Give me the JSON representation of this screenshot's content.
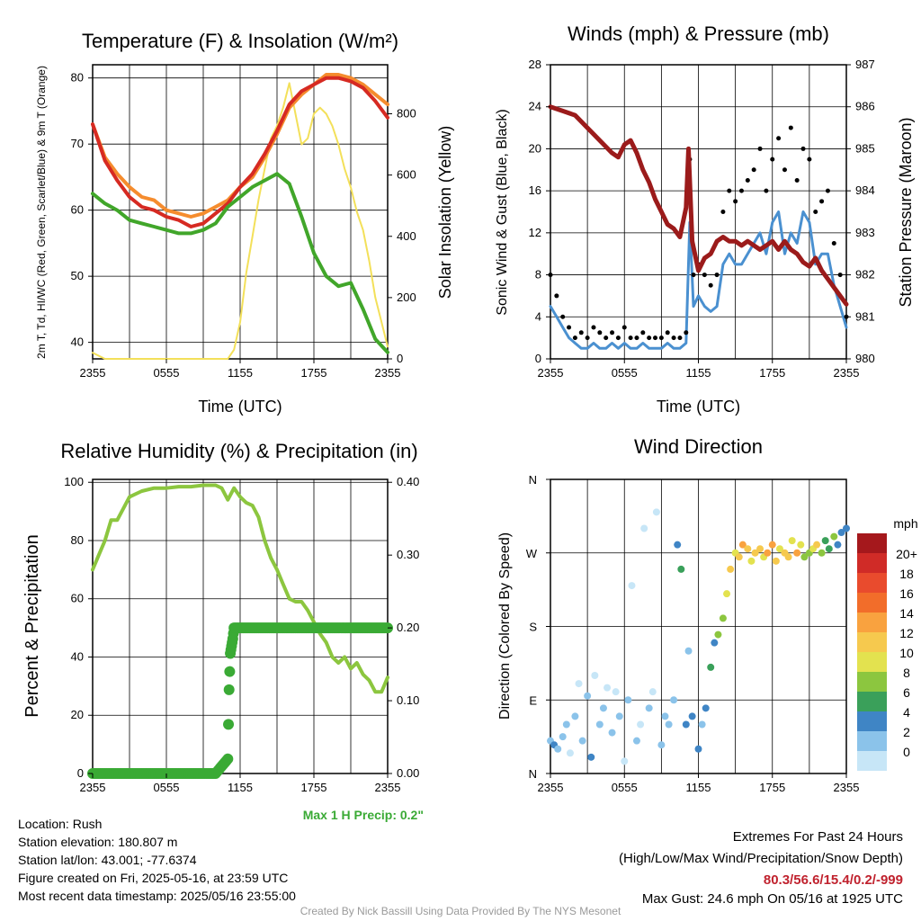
{
  "chart_data": [
    {
      "type": "line",
      "title": "Temperature (F) & Insolation (W/m²)",
      "xlabel": "Time (UTC)",
      "ylabel_left": "2m T, Td, HI/WC (Red, Green, Scarlet/Blue) & 9m T (Orange)",
      "ylabel_right": "Solar Insolation (Yellow)",
      "x_ticks": [
        "2355",
        "0555",
        "1155",
        "1755",
        "2355"
      ],
      "ylim_left": [
        37.5,
        82
      ],
      "yticks_left": [
        40,
        50,
        60,
        70,
        80
      ],
      "ylim_right": [
        0,
        960
      ],
      "yticks_right": [
        0,
        200,
        400,
        600,
        800
      ],
      "series": [
        {
          "color": "#d62a22",
          "x": [
            0,
            1,
            2,
            3,
            4,
            5,
            6,
            7,
            8,
            9,
            10,
            11,
            12,
            13,
            14,
            15,
            16,
            17,
            18,
            19,
            20,
            21,
            22,
            23,
            24
          ],
          "values": [
            73,
            67.5,
            64.5,
            62,
            60.5,
            60,
            59,
            58.5,
            57.5,
            58,
            59.5,
            61,
            63.5,
            65.5,
            68.5,
            72,
            76,
            78,
            79,
            80,
            80,
            79.5,
            78.5,
            76.5,
            74
          ]
        },
        {
          "color": "#f58c2e",
          "x": [
            0,
            1,
            2,
            3,
            4,
            5,
            6,
            7,
            8,
            9,
            10,
            11,
            12,
            13,
            14,
            15,
            16,
            17,
            18,
            19,
            20,
            21,
            22,
            23,
            24
          ],
          "values": [
            73,
            68,
            65.5,
            63.5,
            62,
            61.5,
            60,
            59.5,
            59,
            59.5,
            60.5,
            61.5,
            63.5,
            65,
            68,
            71.5,
            75.5,
            77.5,
            79,
            80.5,
            80.5,
            80,
            79,
            77.5,
            76
          ]
        },
        {
          "color": "#41a62a",
          "x": [
            0,
            1,
            2,
            3,
            4,
            5,
            6,
            7,
            8,
            9,
            10,
            11,
            12,
            13,
            14,
            15,
            16,
            17,
            18,
            19,
            20,
            21,
            22,
            23,
            24
          ],
          "values": [
            62.5,
            61,
            60,
            58.5,
            58,
            57.5,
            57,
            56.5,
            56.5,
            57,
            58,
            60.5,
            62,
            63.5,
            64.5,
            65.5,
            64,
            59,
            53.5,
            50,
            48.5,
            49,
            45,
            40.5,
            38.5
          ]
        },
        {
          "color": "#f3e05a",
          "axis": "right",
          "x": [
            0,
            1,
            2,
            3,
            4,
            5,
            6,
            7,
            8,
            9,
            10,
            11,
            11.5,
            12,
            12.5,
            13,
            13.5,
            14,
            14.5,
            15,
            15.5,
            16,
            16.5,
            17,
            17.5,
            18,
            18.5,
            19,
            19.5,
            20,
            20.5,
            21,
            21.5,
            22,
            22.5,
            23,
            23.5,
            24
          ],
          "values": [
            20,
            0,
            0,
            0,
            0,
            0,
            0,
            0,
            0,
            0,
            0,
            0,
            30,
            120,
            280,
            400,
            520,
            620,
            720,
            760,
            820,
            900,
            800,
            700,
            720,
            800,
            820,
            800,
            760,
            700,
            620,
            560,
            480,
            420,
            320,
            200,
            120,
            40
          ]
        }
      ]
    },
    {
      "type": "line",
      "title": "Winds (mph) & Pressure (mb)",
      "xlabel": "Time (UTC)",
      "ylabel_left": "Sonic Wind & Gust (Blue, Black)",
      "ylabel_right": "Station Pressure (Maroon)",
      "x_ticks": [
        "2355",
        "0555",
        "1155",
        "1755",
        "2355"
      ],
      "ylim_left": [
        0,
        28
      ],
      "yticks_left": [
        0,
        4,
        8,
        12,
        16,
        20,
        24,
        28
      ],
      "ylim_right": [
        980,
        987
      ],
      "yticks_right": [
        980,
        981,
        982,
        983,
        984,
        985,
        986,
        987
      ],
      "series": [
        {
          "name": "pressure",
          "color": "#9b1b1b",
          "axis": "right",
          "x": [
            0,
            1,
            2,
            3,
            4,
            5,
            5.5,
            6,
            6.5,
            7,
            7.5,
            8,
            8.5,
            9,
            9.5,
            10,
            10.5,
            11,
            11.2,
            11.5,
            12,
            12.5,
            13,
            13.5,
            14,
            14.5,
            15,
            15.5,
            16,
            16.5,
            17,
            17.5,
            18,
            18.5,
            19,
            19.5,
            20,
            20.5,
            21,
            21.5,
            22,
            22.5,
            23,
            23.5,
            24
          ],
          "values": [
            986,
            985.9,
            985.8,
            985.5,
            985.2,
            984.9,
            984.8,
            985.1,
            985.2,
            984.9,
            984.5,
            984.2,
            983.8,
            983.5,
            983.2,
            983.1,
            982.9,
            983.6,
            985,
            982.8,
            982.1,
            982.4,
            982.5,
            982.8,
            982.9,
            982.8,
            982.8,
            982.7,
            982.8,
            982.7,
            982.6,
            982.7,
            982.8,
            982.6,
            982.8,
            982.6,
            982.5,
            982.3,
            982.2,
            982.4,
            982.1,
            981.9,
            981.7,
            981.5,
            981.3
          ]
        },
        {
          "name": "wind",
          "color": "#4a90d0",
          "x": [
            0,
            0.5,
            1,
            1.5,
            2,
            2.5,
            3,
            3.5,
            4,
            4.5,
            5,
            5.5,
            6,
            6.5,
            7,
            7.5,
            8,
            8.5,
            9,
            9.5,
            10,
            10.5,
            11,
            11.3,
            11.6,
            12,
            12.5,
            13,
            13.5,
            14,
            14.5,
            15,
            15.5,
            16,
            16.5,
            17,
            17.5,
            18,
            18.5,
            19,
            19.5,
            20,
            20.5,
            21,
            21.5,
            22,
            22.5,
            23,
            23.5,
            24
          ],
          "values": [
            5,
            4,
            3,
            2,
            1.5,
            1,
            1,
            1.5,
            1,
            1,
            1.5,
            1,
            1.5,
            1,
            1,
            1.5,
            1,
            1,
            1,
            1.5,
            1,
            1,
            1.5,
            13,
            5,
            6,
            5,
            4.5,
            5,
            9,
            10,
            9,
            9,
            10,
            11,
            12,
            10,
            13,
            14,
            10,
            12,
            11,
            14,
            13,
            9,
            10,
            10,
            7,
            5,
            3
          ]
        },
        {
          "name": "gust",
          "color": "#000000",
          "x": [
            0,
            0.5,
            1,
            1.5,
            2,
            2.5,
            3,
            3.5,
            4,
            4.5,
            5,
            5.5,
            6,
            6.5,
            7,
            7.5,
            8,
            8.5,
            9,
            9.5,
            10,
            10.5,
            11,
            11.3,
            11.6,
            12,
            12.5,
            13,
            13.5,
            14,
            14.5,
            15,
            15.5,
            16,
            16.5,
            17,
            17.5,
            18,
            18.5,
            19,
            19.5,
            20,
            20.5,
            21,
            21.5,
            22,
            22.5,
            23,
            23.5,
            24
          ],
          "values": [
            8,
            6,
            4,
            3,
            2,
            2.5,
            2,
            3,
            2.5,
            2,
            2.5,
            2,
            3,
            2,
            2,
            2.5,
            2,
            2,
            2,
            2.5,
            2,
            2,
            2.5,
            19,
            8,
            9,
            8,
            7,
            8,
            14,
            16,
            15,
            16,
            17,
            18,
            20,
            16,
            19,
            21,
            18,
            22,
            17,
            20,
            19,
            14,
            15,
            16,
            11,
            8,
            4
          ]
        }
      ]
    },
    {
      "type": "line",
      "title": "Relative Humidity (%) & Precipitation (in)",
      "ylabel_left": "Percent & Precipitation",
      "x_ticks": [
        "2355",
        "0555",
        "1155",
        "1755",
        "2355"
      ],
      "ylim_left": [
        0,
        101
      ],
      "yticks_left": [
        0,
        20,
        40,
        60,
        80,
        100
      ],
      "ylim_right": [
        0,
        0.404
      ],
      "yticks_right": [
        0.0,
        0.1,
        0.2,
        0.3,
        0.4
      ],
      "annotation": "Max 1 H Precip: 0.2\"",
      "series": [
        {
          "name": "rh",
          "color": "#8cc63f",
          "x": [
            0,
            0.5,
            1,
            1.5,
            2,
            3,
            4,
            5,
            6,
            7,
            8,
            9,
            10,
            10.5,
            11,
            11.5,
            12,
            12.5,
            13,
            13.5,
            14,
            14.5,
            15,
            15.5,
            16,
            16.5,
            17,
            17.5,
            18,
            18.5,
            19,
            19.5,
            20,
            20.5,
            21,
            21.5,
            22,
            22.5,
            23,
            23.5,
            24
          ],
          "values": [
            70,
            75,
            80,
            87,
            87,
            95,
            97,
            98,
            98,
            98.5,
            98.5,
            99,
            99,
            98,
            94,
            98,
            95,
            93,
            92,
            88,
            80,
            74,
            70,
            65,
            60,
            59,
            59,
            56,
            52,
            48,
            45,
            40,
            38,
            40,
            36,
            38,
            34,
            32,
            28,
            28,
            33
          ]
        },
        {
          "name": "precip",
          "color": "#3aaa35",
          "axis": "right",
          "x": [
            0,
            1,
            2,
            3,
            4,
            5,
            6,
            7,
            8,
            9,
            10,
            10.5,
            11,
            11.1,
            11.2,
            11.3,
            11.4,
            11.5,
            12,
            13,
            14,
            15,
            16,
            17,
            18,
            19,
            20,
            21,
            22,
            23,
            24
          ],
          "values": [
            0,
            0,
            0,
            0,
            0,
            0,
            0,
            0,
            0,
            0,
            0,
            0.01,
            0.02,
            0.115,
            0.165,
            0.175,
            0.185,
            0.2,
            0.2,
            0.2,
            0.2,
            0.2,
            0.2,
            0.2,
            0.2,
            0.2,
            0.2,
            0.2,
            0.2,
            0.2,
            0.2
          ]
        }
      ]
    },
    {
      "type": "scatter",
      "title": "Wind Direction",
      "ylabel_left": "Direction (Colored By Speed)",
      "x_ticks": [
        "2355",
        "0555",
        "1155",
        "1755",
        "2355"
      ],
      "y_ticks": [
        "N",
        "E",
        "S",
        "W",
        "N"
      ],
      "ylim": [
        0,
        360
      ],
      "legend_title": "mph",
      "legend_labels": [
        "20+",
        "18",
        "16",
        "14",
        "12",
        "10",
        "8",
        "6",
        "4",
        "2",
        "0"
      ],
      "legend_colors": [
        "#a5181c",
        "#d02b27",
        "#e94b2d",
        "#f26d2a",
        "#f9a23f",
        "#f6c94e",
        "#e3e24f",
        "#8cc63f",
        "#3aa05a",
        "#3f85c5",
        "#8bc3ea",
        "#c7e6f7"
      ],
      "x": [
        0,
        0.3,
        0.6,
        1,
        1.3,
        1.6,
        2,
        2.3,
        2.6,
        3,
        3.3,
        3.6,
        4,
        4.3,
        4.6,
        5,
        5.3,
        5.6,
        6,
        6.3,
        6.6,
        7,
        7.3,
        7.6,
        8,
        8.3,
        8.6,
        9,
        9.3,
        9.6,
        10,
        10.3,
        10.6,
        11,
        11.2,
        11.5,
        12,
        12.3,
        12.6,
        13,
        13.3,
        13.6,
        14,
        14.3,
        14.6,
        15,
        15.3,
        15.6,
        16,
        16.3,
        16.6,
        17,
        17.3,
        17.6,
        18,
        18.3,
        18.6,
        19,
        19.3,
        19.6,
        20,
        20.3,
        20.6,
        21,
        21.3,
        21.6,
        22,
        22.3,
        22.6,
        23,
        23.3,
        23.6,
        24
      ],
      "values": [
        40,
        35,
        30,
        45,
        60,
        25,
        70,
        110,
        40,
        95,
        20,
        120,
        60,
        80,
        105,
        50,
        100,
        70,
        15,
        90,
        230,
        40,
        60,
        300,
        80,
        100,
        320,
        35,
        70,
        60,
        90,
        280,
        250,
        60,
        150,
        70,
        30,
        60,
        80,
        130,
        160,
        170,
        190,
        220,
        250,
        270,
        265,
        280,
        275,
        260,
        270,
        275,
        265,
        270,
        280,
        260,
        275,
        270,
        265,
        285,
        270,
        280,
        265,
        270,
        275,
        280,
        270,
        285,
        275,
        290,
        280,
        295,
        300
      ],
      "speeds": [
        2,
        4,
        3,
        2,
        3,
        1,
        2,
        1,
        3,
        2,
        4,
        1,
        2,
        3,
        1,
        2,
        1,
        2,
        1,
        2,
        1,
        2,
        1,
        1,
        2,
        1,
        1,
        2,
        3,
        2,
        3,
        4,
        6,
        4,
        3,
        5,
        4,
        3,
        4,
        6,
        5,
        8,
        9,
        11,
        12,
        10,
        13,
        14,
        12,
        11,
        13,
        12,
        10,
        14,
        15,
        12,
        11,
        13,
        12,
        10,
        14,
        11,
        9,
        8,
        10,
        12,
        9,
        7,
        6,
        8,
        5,
        4,
        4
      ]
    }
  ],
  "info": {
    "location": "Location: Rush",
    "elevation": "Station elevation: 180.807 m",
    "latlon": "Station lat/lon: 43.001; -77.6374",
    "created": "Figure created on Fri, 2025-05-16, at 23:59 UTC",
    "recent": "Most recent data timestamp: 2025/05/16 23:55:00"
  },
  "extremes": {
    "title": "Extremes For Past 24 Hours",
    "subtitle": "(High/Low/Max Wind/Precipitation/Snow Depth)",
    "values": "80.3/56.6/15.4/0.2/-999",
    "gust": "Max Gust: 24.6 mph On 05/16 at 1925 UTC"
  },
  "credit": "Created By Nick Bassill Using Data Provided By The NYS Mesonet"
}
